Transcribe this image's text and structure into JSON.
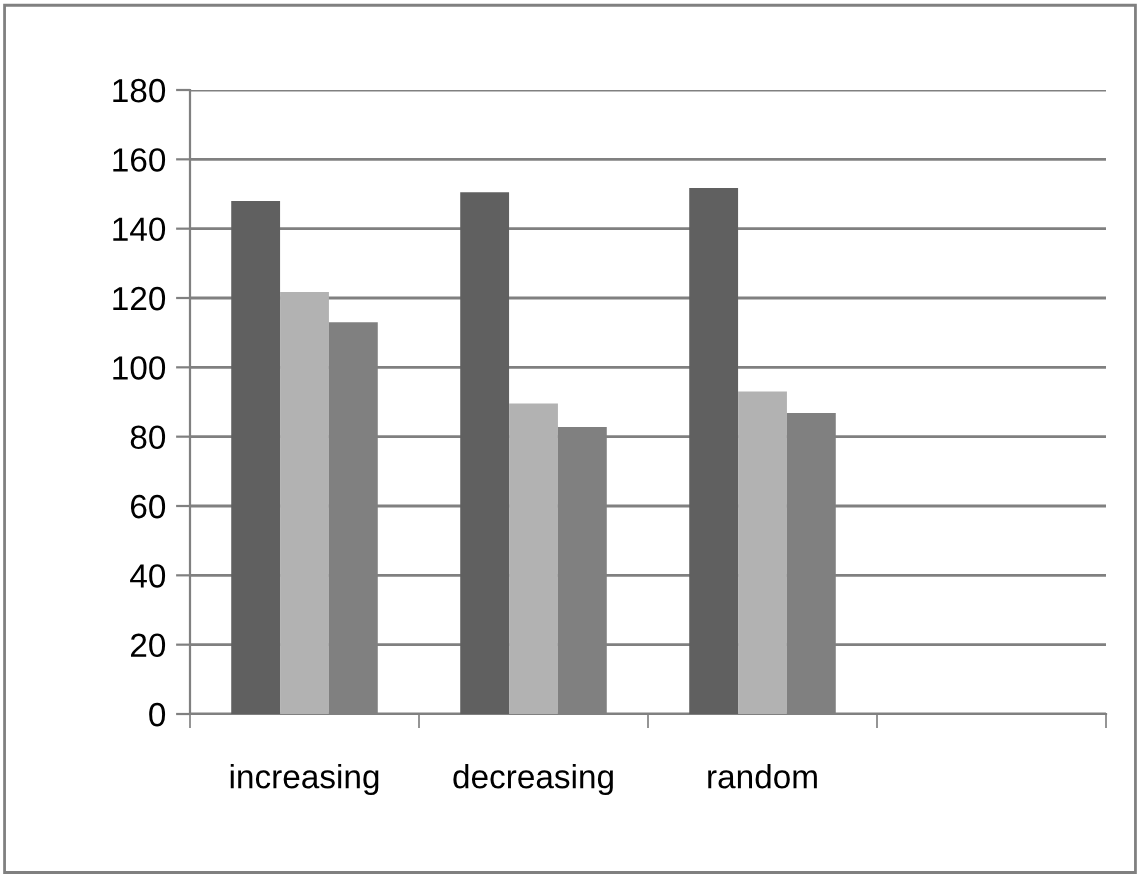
{
  "chart_data": {
    "type": "bar",
    "categories": [
      "increasing",
      "decreasing",
      "random",
      null
    ],
    "series": [
      {
        "color": "#606060",
        "values": [
          148,
          150.5,
          151.7,
          null
        ]
      },
      {
        "color": "#b2b2b2",
        "values": [
          121.7,
          89.6,
          93,
          null
        ]
      },
      {
        "color": "#808080",
        "values": [
          113,
          82.8,
          86.8,
          null
        ]
      }
    ],
    "ylim": [
      0,
      180
    ],
    "yticks": [
      0,
      20,
      40,
      60,
      80,
      100,
      120,
      140,
      160,
      180
    ],
    "grid": "y",
    "legend": false
  }
}
